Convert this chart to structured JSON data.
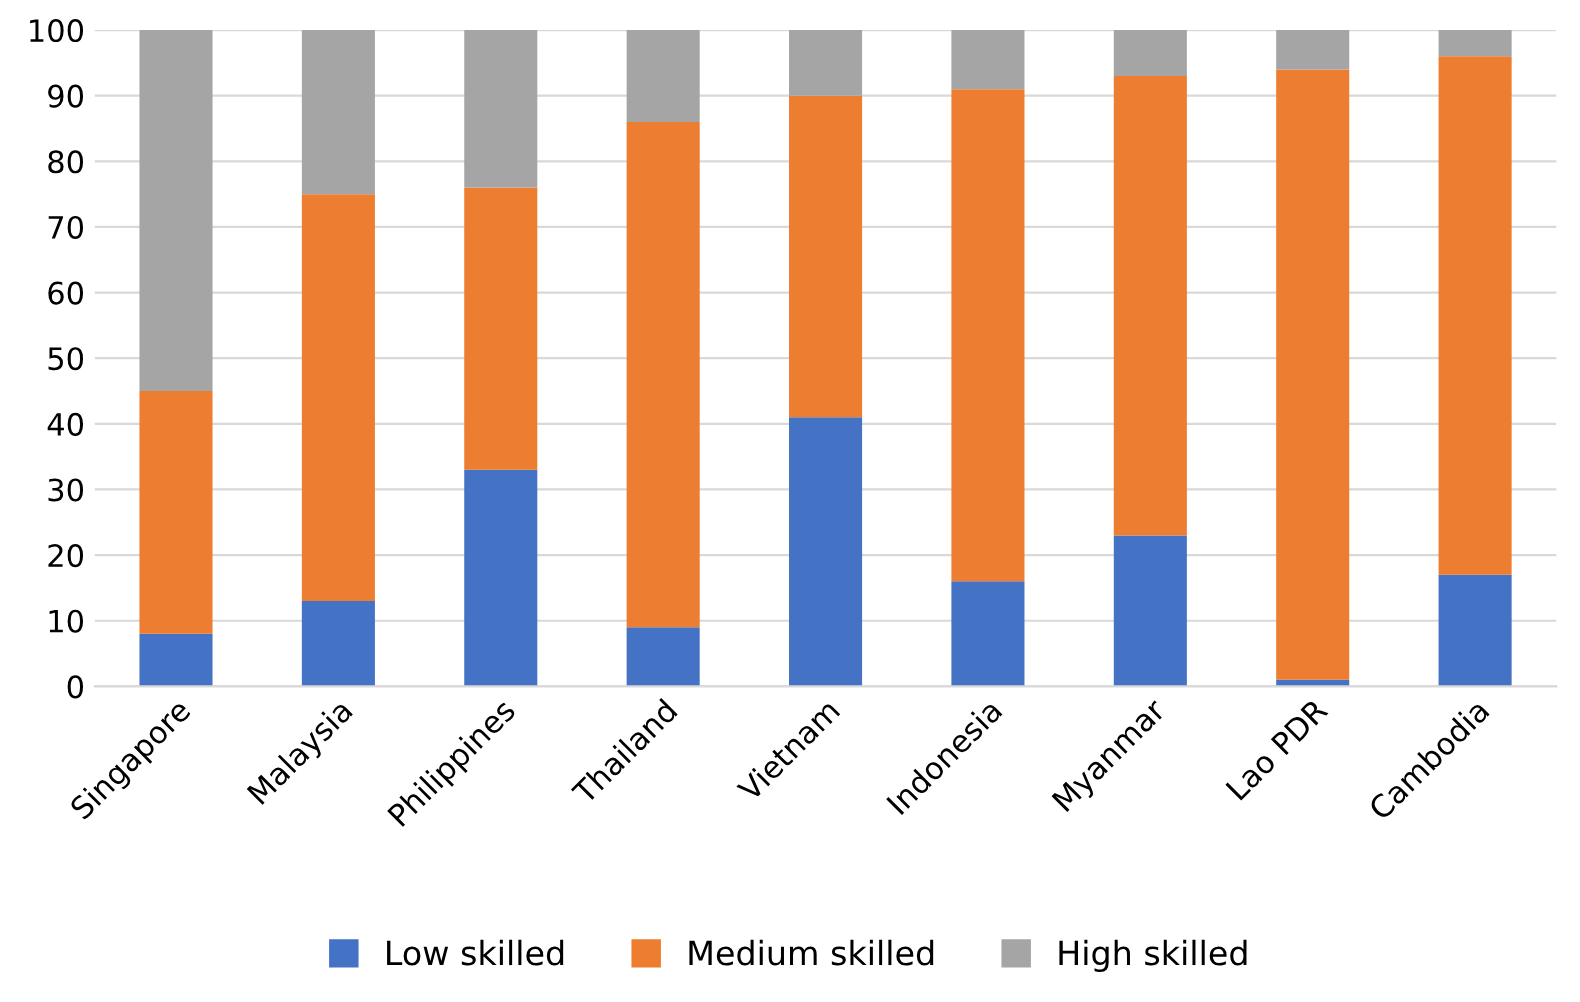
{
  "chart_data": {
    "type": "bar",
    "stacked": true,
    "categories": [
      "Singapore",
      "Malaysia",
      "Philippines",
      "Thailand",
      "Vietnam",
      "Indonesia",
      "Myanmar",
      "Lao PDR",
      "Cambodia"
    ],
    "series": [
      {
        "name": "Low skilled",
        "color": "#4472c4",
        "values": [
          8,
          13,
          33,
          9,
          41,
          16,
          23,
          1,
          17
        ]
      },
      {
        "name": "Medium skilled",
        "color": "#ed7d31",
        "values": [
          37,
          62,
          43,
          77,
          49,
          75,
          70,
          93,
          79
        ]
      },
      {
        "name": "High skilled",
        "color": "#a5a5a5",
        "values": [
          55,
          25,
          24,
          14,
          10,
          9,
          7,
          6,
          4
        ]
      }
    ],
    "ylim": [
      0,
      100
    ],
    "yticks": [
      0,
      10,
      20,
      30,
      40,
      50,
      60,
      70,
      80,
      90,
      100
    ],
    "grid": "y",
    "legend": "bottom"
  }
}
